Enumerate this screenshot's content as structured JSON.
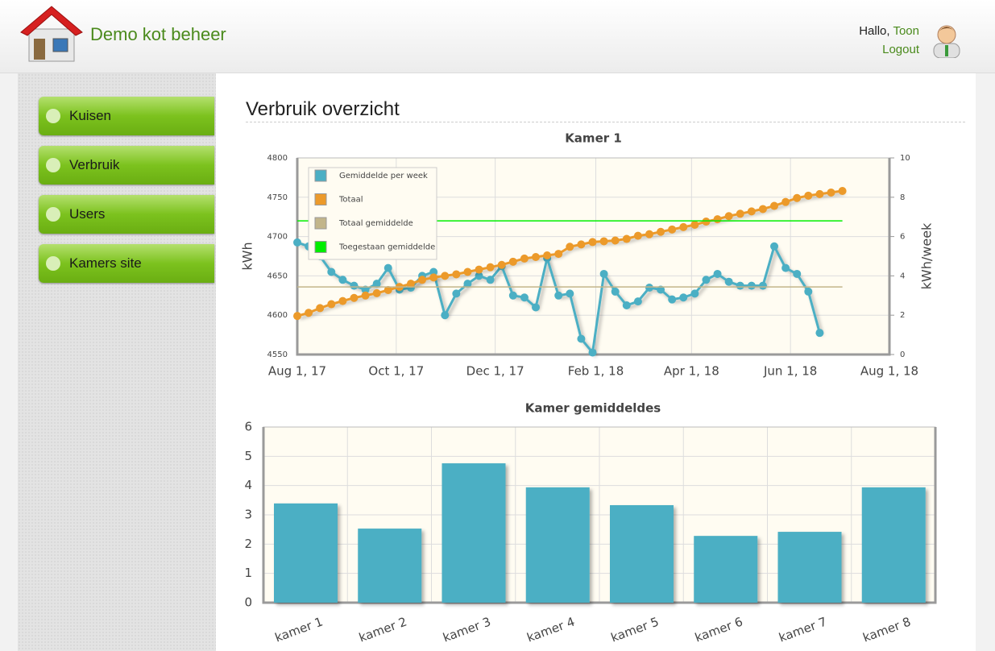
{
  "header": {
    "title": "Demo kot beheer",
    "greeting": "Hallo,",
    "user": "Toon",
    "logout": "Logout"
  },
  "menu": [
    "Kuisen",
    "Verbruik",
    "Users",
    "Kamers site"
  ],
  "page_title": "Verbruik overzicht",
  "chart_data": [
    {
      "type": "line",
      "title": "Kamer 1",
      "ylabel": "kWh",
      "y2label": "kWh/week",
      "x": [
        "2017-08-01",
        "2017-08-08",
        "2017-08-15",
        "2017-08-22",
        "2017-08-29",
        "2017-09-05",
        "2017-09-12",
        "2017-09-19",
        "2017-09-26",
        "2017-10-03",
        "2017-10-10",
        "2017-10-17",
        "2017-10-24",
        "2017-10-31",
        "2017-11-07",
        "2017-11-14",
        "2017-11-21",
        "2017-11-28",
        "2017-12-05",
        "2017-12-12",
        "2017-12-19",
        "2017-12-26",
        "2018-01-02",
        "2018-01-09",
        "2018-01-16",
        "2018-01-23",
        "2018-01-30",
        "2018-02-06",
        "2018-02-13",
        "2018-02-20",
        "2018-02-27",
        "2018-03-06",
        "2018-03-13",
        "2018-03-20",
        "2018-03-27",
        "2018-04-03",
        "2018-04-10",
        "2018-04-17",
        "2018-04-24",
        "2018-05-01",
        "2018-05-08",
        "2018-05-15",
        "2018-05-22",
        "2018-05-29",
        "2018-06-05",
        "2018-06-12",
        "2018-06-19",
        "2018-06-26",
        "2018-07-03"
      ],
      "series": [
        {
          "name": "Gemiddelde per week",
          "color": "#4bafc4",
          "axis": "y2",
          "values": [
            5.7,
            5.5,
            5.0,
            4.2,
            3.8,
            3.5,
            3.3,
            3.6,
            4.4,
            3.3,
            3.4,
            4.0,
            4.2,
            2.0,
            3.1,
            3.6,
            4.0,
            3.8,
            4.5,
            3.0,
            2.9,
            2.4,
            4.9,
            3.0,
            3.1,
            0.8,
            0.1,
            4.1,
            3.2,
            2.5,
            2.7,
            3.4,
            3.3,
            2.8,
            2.9,
            3.1,
            3.8,
            4.1,
            3.7,
            3.5,
            3.5,
            3.5,
            5.5,
            4.4,
            4.1,
            3.2,
            1.1,
            null,
            null
          ]
        },
        {
          "name": "Totaal",
          "color": "#ec9a2a",
          "values": [
            4599,
            4603,
            4609,
            4614,
            4618,
            4622,
            4625,
            4628,
            4632,
            4636,
            4640,
            4645,
            4648,
            4650,
            4652,
            4655,
            4658,
            4661,
            4664,
            4668,
            4672,
            4674,
            4676,
            4678,
            4687,
            4690,
            4693,
            4694,
            4695,
            4697,
            4701,
            4703,
            4706,
            4709,
            4712,
            4715,
            4719,
            4722,
            4726,
            4729,
            4732,
            4735,
            4739,
            4744,
            4749,
            4752,
            4754,
            4756,
            4758
          ]
        },
        {
          "name": "Totaal gemiddelde",
          "color": "#c2b58a",
          "axis": "y2",
          "value": 3.44
        },
        {
          "name": "Toegestaan gemiddelde",
          "color": "#00ee00",
          "axis": "y2",
          "value": 6.8
        }
      ],
      "xlim": [
        "2017-08-01",
        "2018-08-01"
      ],
      "xticks": [
        {
          "value": "2017-08-01",
          "label": "Aug 1, 17"
        },
        {
          "value": "2017-10-01",
          "label": "Oct 1, 17"
        },
        {
          "value": "2017-12-01",
          "label": "Dec 1, 17"
        },
        {
          "value": "2018-02-01",
          "label": "Feb 1, 18"
        },
        {
          "value": "2018-04-01",
          "label": "Apr 1, 18"
        },
        {
          "value": "2018-06-01",
          "label": "Jun 1, 18"
        },
        {
          "value": "2018-08-01",
          "label": "Aug 1, 18"
        }
      ],
      "ylim": [
        4550,
        4800
      ],
      "yticks": [
        4550,
        4600,
        4650,
        4700,
        4750,
        4800
      ],
      "y2lim": [
        0,
        10
      ],
      "y2ticks": [
        0,
        2,
        4,
        6,
        8,
        10
      ],
      "grid": true,
      "legend": "top-left"
    },
    {
      "type": "bar",
      "title": "Kamer gemiddeldes",
      "categories": [
        "kamer 1",
        "kamer 2",
        "kamer 3",
        "kamer 4",
        "kamer 5",
        "kamer 6",
        "kamer 7",
        "kamer 8"
      ],
      "values": [
        3.39,
        2.53,
        4.76,
        3.94,
        3.33,
        2.28,
        2.42,
        3.94
      ],
      "color": "#4bafc4",
      "ylim": [
        0,
        6
      ],
      "yticks": [
        0,
        1,
        2,
        3,
        4,
        5,
        6
      ],
      "grid": true
    }
  ]
}
